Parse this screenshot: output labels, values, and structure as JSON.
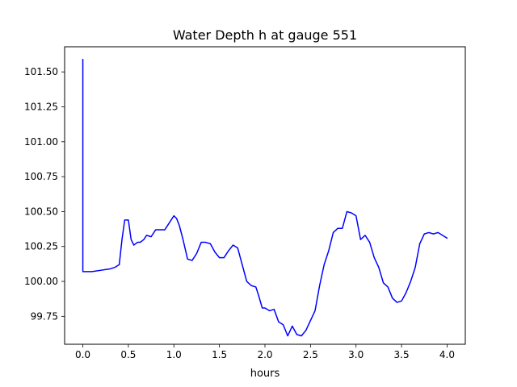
{
  "chart_data": {
    "type": "line",
    "title": "Water Depth h at gauge 551",
    "xlabel": "hours",
    "ylabel": "",
    "xlim": [
      -0.2,
      4.2
    ],
    "ylim": [
      99.55,
      101.68
    ],
    "xticks": [
      0.0,
      0.5,
      1.0,
      1.5,
      2.0,
      2.5,
      3.0,
      3.5,
      4.0
    ],
    "xtick_labels": [
      "0.0",
      "0.5",
      "1.0",
      "1.5",
      "2.0",
      "2.5",
      "3.0",
      "3.5",
      "4.0"
    ],
    "yticks": [
      99.75,
      100.0,
      100.25,
      100.5,
      100.75,
      101.0,
      101.25,
      101.5
    ],
    "ytick_labels": [
      "99.75",
      "100.00",
      "100.25",
      "100.50",
      "100.75",
      "101.00",
      "101.25",
      "101.50"
    ],
    "grid": false,
    "legend": "none",
    "series": [
      {
        "color": "#0000ff",
        "x": [
          0.0,
          0.0,
          0.1,
          0.2,
          0.3,
          0.35,
          0.4,
          0.43,
          0.46,
          0.5,
          0.53,
          0.56,
          0.6,
          0.63,
          0.67,
          0.7,
          0.75,
          0.8,
          0.85,
          0.9,
          0.95,
          1.0,
          1.03,
          1.06,
          1.1,
          1.15,
          1.2,
          1.25,
          1.3,
          1.35,
          1.4,
          1.45,
          1.5,
          1.55,
          1.6,
          1.65,
          1.7,
          1.75,
          1.8,
          1.85,
          1.9,
          1.93,
          1.97,
          2.0,
          2.05,
          2.1,
          2.15,
          2.2,
          2.25,
          2.3,
          2.35,
          2.4,
          2.45,
          2.5,
          2.55,
          2.6,
          2.65,
          2.7,
          2.75,
          2.8,
          2.85,
          2.9,
          2.95,
          3.0,
          3.05,
          3.1,
          3.15,
          3.2,
          3.25,
          3.3,
          3.35,
          3.4,
          3.45,
          3.5,
          3.55,
          3.6,
          3.65,
          3.7,
          3.75,
          3.8,
          3.85,
          3.9,
          3.95,
          4.0
        ],
        "y": [
          101.59,
          100.07,
          100.07,
          100.08,
          100.09,
          100.1,
          100.12,
          100.3,
          100.44,
          100.44,
          100.3,
          100.26,
          100.28,
          100.28,
          100.3,
          100.33,
          100.32,
          100.37,
          100.37,
          100.37,
          100.42,
          100.47,
          100.45,
          100.4,
          100.3,
          100.16,
          100.15,
          100.2,
          100.28,
          100.28,
          100.27,
          100.21,
          100.17,
          100.17,
          100.22,
          100.26,
          100.24,
          100.12,
          100.0,
          99.97,
          99.96,
          99.9,
          99.81,
          99.81,
          99.79,
          99.8,
          99.71,
          99.69,
          99.61,
          99.68,
          99.62,
          99.61,
          99.65,
          99.72,
          99.79,
          99.97,
          100.12,
          100.22,
          100.35,
          100.38,
          100.38,
          100.5,
          100.49,
          100.47,
          100.3,
          100.33,
          100.28,
          100.17,
          100.1,
          99.99,
          99.96,
          99.88,
          99.85,
          99.86,
          99.92,
          100.0,
          100.1,
          100.27,
          100.34,
          100.35,
          100.34,
          100.35,
          100.33,
          100.31
        ]
      }
    ]
  }
}
